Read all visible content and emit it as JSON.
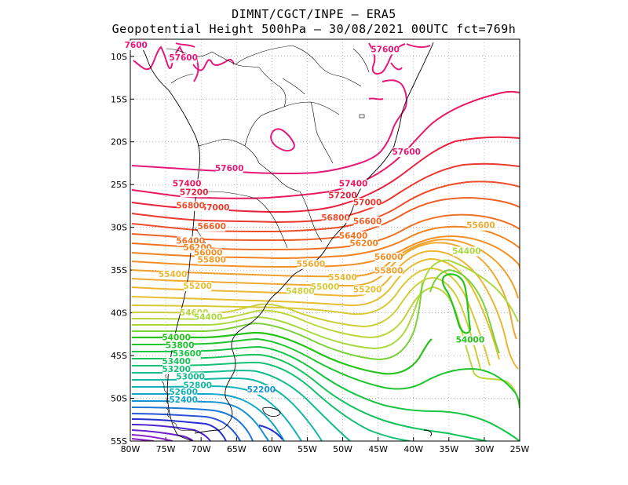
{
  "title": {
    "line1": "DIMNT/CGCT/INPE –  ERA5",
    "line2": "Geopotential Height 500hPa –  30/08/2021 00UTC fct=769h"
  },
  "map": {
    "lon_range": [
      -80,
      -25
    ],
    "lat_range": [
      -55,
      -8
    ],
    "lon_ticks": [
      "80W",
      "75W",
      "70W",
      "65W",
      "60W",
      "55W",
      "50W",
      "45W",
      "40W",
      "35W",
      "30W",
      "25W"
    ],
    "lat_ticks": [
      "10S",
      "15S",
      "20S",
      "25S",
      "30S",
      "35S",
      "40S",
      "45S",
      "50S",
      "55S"
    ],
    "contour_interval": 200,
    "grid": "dotted"
  },
  "contour_labels": [
    {
      "text": "7600",
      "lon": -79.2,
      "lat": -9.0,
      "color": "#e6197a"
    },
    {
      "text": "57600",
      "lon": -72.5,
      "lat": -10.5,
      "color": "#e6197a"
    },
    {
      "text": "57600",
      "lon": -44.0,
      "lat": -9.5,
      "color": "#e6197a"
    },
    {
      "text": "57600",
      "lon": -41.0,
      "lat": -21.5,
      "color": "#e6197a"
    },
    {
      "text": "57600",
      "lon": -66.0,
      "lat": -23.4,
      "color": "#e6197a"
    },
    {
      "text": "57400",
      "lon": -72.0,
      "lat": -25.2,
      "color": "#e8195f"
    },
    {
      "text": "57400",
      "lon": -48.5,
      "lat": -25.2,
      "color": "#e8195f"
    },
    {
      "text": "57200",
      "lon": -71.0,
      "lat": -26.2,
      "color": "#e9233f"
    },
    {
      "text": "57200",
      "lon": -50.0,
      "lat": -26.6,
      "color": "#e9233f"
    },
    {
      "text": "57000",
      "lon": -68.0,
      "lat": -28.0,
      "color": "#ea3a2e"
    },
    {
      "text": "57000",
      "lon": -46.5,
      "lat": -27.4,
      "color": "#ea3a2e"
    },
    {
      "text": "56800",
      "lon": -71.5,
      "lat": -27.8,
      "color": "#ec4f2a"
    },
    {
      "text": "56800",
      "lon": -51.0,
      "lat": -29.2,
      "color": "#ec4f2a"
    },
    {
      "text": "56600",
      "lon": -68.5,
      "lat": -30.2,
      "color": "#ee6127"
    },
    {
      "text": "56600",
      "lon": -46.5,
      "lat": -29.6,
      "color": "#ee6127"
    },
    {
      "text": "56400",
      "lon": -71.5,
      "lat": -31.9,
      "color": "#f07224"
    },
    {
      "text": "56400",
      "lon": -48.5,
      "lat": -31.3,
      "color": "#f07224"
    },
    {
      "text": "56200",
      "lon": -70.5,
      "lat": -32.7,
      "color": "#f28222"
    },
    {
      "text": "56200",
      "lon": -47.0,
      "lat": -32.2,
      "color": "#f28222"
    },
    {
      "text": "56000",
      "lon": -69.0,
      "lat": -33.3,
      "color": "#f39126"
    },
    {
      "text": "56000",
      "lon": -43.5,
      "lat": -33.8,
      "color": "#f39126"
    },
    {
      "text": "55800",
      "lon": -68.5,
      "lat": -34.1,
      "color": "#f0a02a"
    },
    {
      "text": "55800",
      "lon": -43.5,
      "lat": -35.4,
      "color": "#f0a02a"
    },
    {
      "text": "55600",
      "lon": -54.5,
      "lat": -34.6,
      "color": "#eeaa30"
    },
    {
      "text": "55600",
      "lon": -30.5,
      "lat": -30.1,
      "color": "#eeaa30"
    },
    {
      "text": "55400",
      "lon": -74.0,
      "lat": -35.8,
      "color": "#ecb532"
    },
    {
      "text": "55400",
      "lon": -50.0,
      "lat": -36.2,
      "color": "#ecb532"
    },
    {
      "text": "55200",
      "lon": -70.5,
      "lat": -37.2,
      "color": "#e6bf30"
    },
    {
      "text": "55200",
      "lon": -46.5,
      "lat": -37.6,
      "color": "#e6bf30"
    },
    {
      "text": "55000",
      "lon": -52.5,
      "lat": -37.3,
      "color": "#dac835"
    },
    {
      "text": "54800",
      "lon": -56.0,
      "lat": -37.8,
      "color": "#cdd03c"
    },
    {
      "text": "54600",
      "lon": -71.0,
      "lat": -40.3,
      "color": "#bcd63c"
    },
    {
      "text": "54400",
      "lon": -69.0,
      "lat": -40.8,
      "color": "#aad93e"
    },
    {
      "text": "54400",
      "lon": -32.5,
      "lat": -33.1,
      "color": "#aad93e"
    },
    {
      "text": "54000",
      "lon": -32.0,
      "lat": -43.5,
      "color": "#26c41a"
    },
    {
      "text": "54000",
      "lon": -73.5,
      "lat": -43.2,
      "color": "#26c41a"
    },
    {
      "text": "53800",
      "lon": -73.0,
      "lat": -44.1,
      "color": "#1ec52e"
    },
    {
      "text": "53600",
      "lon": -72.0,
      "lat": -45.1,
      "color": "#17c443"
    },
    {
      "text": "53400",
      "lon": -73.5,
      "lat": -46.0,
      "color": "#15c35b"
    },
    {
      "text": "53200",
      "lon": -73.5,
      "lat": -46.9,
      "color": "#14c075"
    },
    {
      "text": "53000",
      "lon": -71.5,
      "lat": -47.8,
      "color": "#13bd8d"
    },
    {
      "text": "52800",
      "lon": -70.5,
      "lat": -48.8,
      "color": "#12b9a4"
    },
    {
      "text": "52600",
      "lon": -72.5,
      "lat": -49.6,
      "color": "#10b3b9"
    },
    {
      "text": "52400",
      "lon": -72.5,
      "lat": -50.5,
      "color": "#10a6c9"
    },
    {
      "text": "52200",
      "lon": -61.5,
      "lat": -49.3,
      "color": "#1592d2"
    }
  ],
  "colors": {
    "high": "#e6197a",
    "mid": "#f0a02a",
    "low_green": "#26c41a",
    "cyan": "#10b3b9",
    "blue": "#2330d6",
    "violet": "#8a1fc7",
    "coast": "#000000",
    "grid": "#9a9a9a"
  }
}
